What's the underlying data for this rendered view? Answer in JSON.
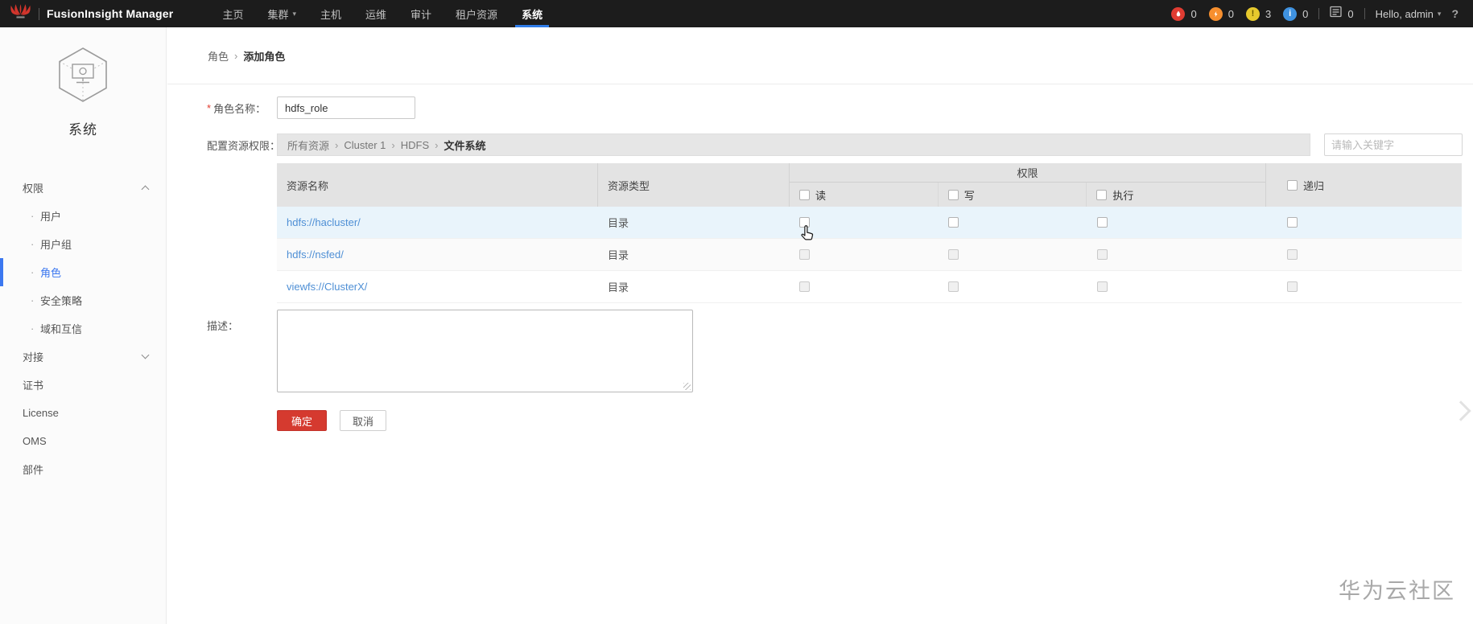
{
  "navbar": {
    "brand": "FusionInsight Manager",
    "items": [
      {
        "key": "home",
        "label": "主页"
      },
      {
        "key": "cluster",
        "label": "集群",
        "has_dropdown": true
      },
      {
        "key": "host",
        "label": "主机"
      },
      {
        "key": "om",
        "label": "运维"
      },
      {
        "key": "audit",
        "label": "审计"
      },
      {
        "key": "tenant",
        "label": "租户资源"
      },
      {
        "key": "system",
        "label": "系统",
        "active": true
      }
    ],
    "alarms": [
      {
        "key": "critical",
        "icon": "flame-icon",
        "count": "0",
        "color": "#e03c32"
      },
      {
        "key": "major",
        "icon": "lightning-icon",
        "count": "0",
        "color": "#f78f2e"
      },
      {
        "key": "minor",
        "icon": "exclamation-icon",
        "count": "3",
        "color": "#e6c92d"
      },
      {
        "key": "warning",
        "icon": "info-icon",
        "count": "0",
        "color": "#3f92e0"
      }
    ],
    "task_count": "0",
    "greeting": "Hello, admin",
    "help_label": "?"
  },
  "sidebar": {
    "module_title": "系统",
    "items": [
      {
        "key": "permission",
        "label": "权限",
        "type": "group",
        "expanded": true
      },
      {
        "key": "user",
        "label": "用户",
        "type": "sub"
      },
      {
        "key": "user-group",
        "label": "用户组",
        "type": "sub"
      },
      {
        "key": "role",
        "label": "角色",
        "type": "sub",
        "active": true
      },
      {
        "key": "security-policy",
        "label": "安全策略",
        "type": "sub"
      },
      {
        "key": "domain-trust",
        "label": "域和互信",
        "type": "sub"
      },
      {
        "key": "interconnect",
        "label": "对接",
        "type": "group",
        "expanded": false
      },
      {
        "key": "certificate",
        "label": "证书",
        "type": "item"
      },
      {
        "key": "license",
        "label": "License",
        "type": "item"
      },
      {
        "key": "oms",
        "label": "OMS",
        "type": "item"
      },
      {
        "key": "components",
        "label": "部件",
        "type": "item"
      }
    ]
  },
  "breadcrumb": {
    "parent": "角色",
    "separator": "›",
    "current": "添加角色"
  },
  "form": {
    "required_marker": "*",
    "role_name_label": "角色名称：",
    "role_name_value": "hdfs_role",
    "resource_perm_label": "配置资源权限：",
    "resource_path": [
      "所有资源",
      "Cluster 1",
      "HDFS",
      "文件系统"
    ],
    "path_separator": "›",
    "search_placeholder": "请输入关键字",
    "description_label": "描述：",
    "description_value": "",
    "ok_label": "确定",
    "cancel_label": "取消"
  },
  "table": {
    "col_resource_name": "资源名称",
    "col_resource_type": "资源类型",
    "col_permission_group": "权限",
    "perm_cols": [
      "读",
      "写",
      "执行"
    ],
    "col_recursive": "递归",
    "rows": [
      {
        "name": "hdfs://hacluster/",
        "type": "目录",
        "read": false,
        "write": false,
        "execute": false,
        "recursive": false,
        "hovered": true
      },
      {
        "name": "hdfs://nsfed/",
        "type": "目录",
        "read": false,
        "write": false,
        "execute": false,
        "recursive": false
      },
      {
        "name": "viewfs://ClusterX/",
        "type": "目录",
        "read": false,
        "write": false,
        "execute": false,
        "recursive": false
      }
    ]
  },
  "colors": {
    "accent_blue": "#2f7ce8",
    "active_item": "#3c78f0",
    "link": "#4e8fd5",
    "ok_button": "#d53a2f"
  },
  "watermark": "华为云社区"
}
